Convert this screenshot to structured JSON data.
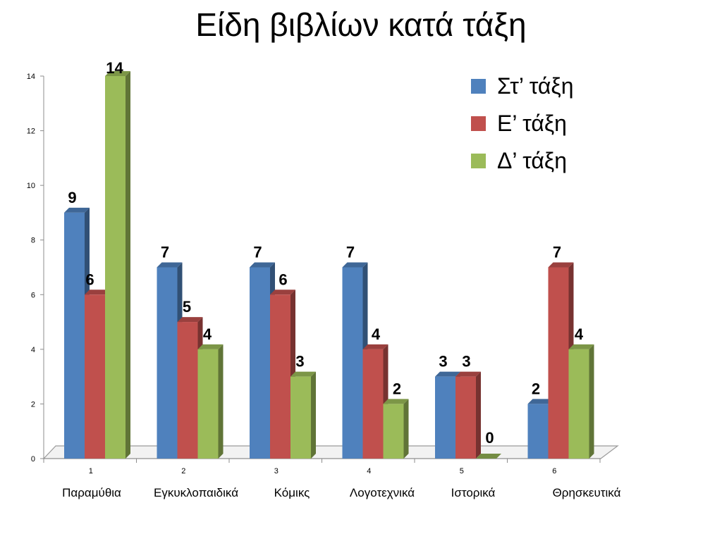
{
  "chart_data": {
    "type": "bar",
    "title": "Είδη βιβλίων κατά τάξη",
    "x": [
      "1",
      "2",
      "3",
      "4",
      "5",
      "6"
    ],
    "categories": [
      "Παραμύθια",
      "Εγκυκλοπαιδικά",
      "Κόμικς",
      "Λογοτεχνικά",
      "Ιστορικά",
      "Θρησκευτικά"
    ],
    "series": [
      {
        "name": "Στ’ τάξη",
        "values": [
          9,
          7,
          7,
          7,
          3,
          2
        ],
        "color": "#4F81BD"
      },
      {
        "name": "Ε’ τάξη",
        "values": [
          6,
          5,
          6,
          4,
          3,
          7
        ],
        "color": "#C0504D"
      },
      {
        "name": "Δ’ τάξη",
        "values": [
          14,
          4,
          3,
          2,
          0,
          4
        ],
        "color": "#9BBB59"
      }
    ],
    "y_ticks": [
      "0",
      "2",
      "4",
      "6",
      "8",
      "10",
      "12",
      "14"
    ],
    "ylim": [
      0,
      14
    ],
    "legend_position": "top-right",
    "grid": false,
    "three_d": true,
    "data_labels": true
  }
}
